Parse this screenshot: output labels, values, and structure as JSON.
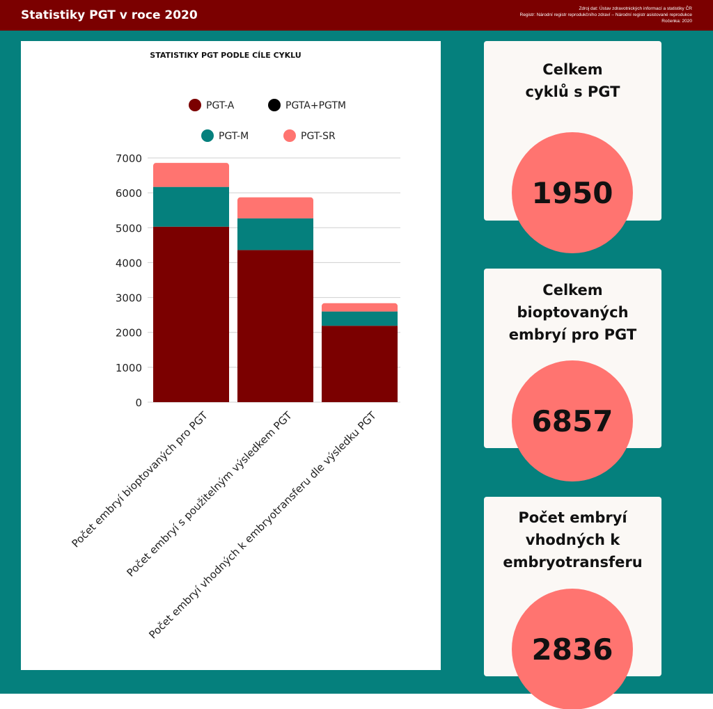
{
  "header": {
    "title": "Statistiky PGT v roce 2020",
    "source_line1": "Zdroj dat: Ústav zdravotnických informací a statistiky ČR",
    "source_line2": "Registr: Národní registr reprodukčního zdraví – Národní registr asistované reprodukce",
    "source_line3": "Ročenka: 2020"
  },
  "colors": {
    "header_bg": "#7b0000",
    "teal": "#05807d",
    "pgt_a": "#7b0000",
    "pgta_pgtm": "#000000",
    "pgt_m": "#05807d",
    "pgt_sr": "#ff7470"
  },
  "chart_data": {
    "type": "bar",
    "stacked": true,
    "title": "STATISTIKY PGT PODLE CÍLE CYKLU",
    "categories": [
      "Počet embryí bioptovaných pro PGT",
      "Počet embryí s použitelným výsledkem PGT",
      "Počet embryí vhodných k embryotransferu dle výsledku PGT"
    ],
    "series": [
      {
        "name": "PGT-A",
        "color": "#7b0000",
        "values": [
          5030,
          4360,
          2190
        ]
      },
      {
        "name": "PGTA+PGTM",
        "color": "#000000",
        "values": [
          0,
          0,
          0
        ]
      },
      {
        "name": "PGT-M",
        "color": "#05807d",
        "values": [
          1140,
          910,
          410
        ]
      },
      {
        "name": "PGT-SR",
        "color": "#ff7470",
        "values": [
          687,
          600,
          236
        ]
      }
    ],
    "ylim": [
      0,
      7000
    ],
    "yticks": [
      "7000",
      "6000",
      "5000",
      "4000",
      "3000",
      "2000",
      "1000",
      "0"
    ],
    "grid": true,
    "legend_position": "top"
  },
  "cards": [
    {
      "label_lines": [
        "Celkem",
        "cyklů s PGT"
      ],
      "value": "1950"
    },
    {
      "label_lines": [
        "Celkem",
        "bioptovaných",
        "embryí pro PGT"
      ],
      "value": "6857"
    },
    {
      "label_lines": [
        "Počet embryí",
        "vhodných k",
        "embryotransferu"
      ],
      "value": "2836"
    }
  ]
}
